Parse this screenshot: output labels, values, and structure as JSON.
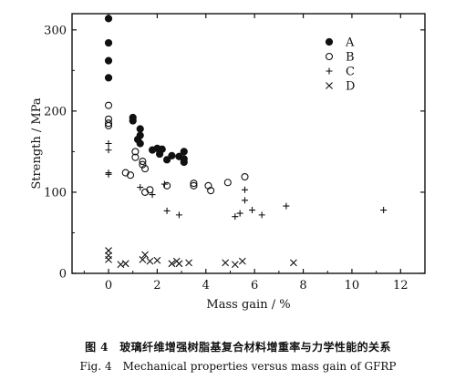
{
  "chart_data": {
    "type": "scatter",
    "xlabel": "Mass gain / %",
    "ylabel": "Strength / MPa",
    "xlim": [
      -1.5,
      13
    ],
    "ylim": [
      0,
      320
    ],
    "xticks": [
      0,
      2,
      4,
      6,
      8,
      10,
      12
    ],
    "yticks": [
      0,
      100,
      200,
      300
    ],
    "grid": false,
    "legend_position": "top-right",
    "series": [
      {
        "name": "A",
        "marker": "filled-circle",
        "points": [
          [
            0,
            314
          ],
          [
            0,
            284
          ],
          [
            0,
            262
          ],
          [
            0,
            241
          ],
          [
            1.0,
            192
          ],
          [
            1.0,
            188
          ],
          [
            1.3,
            178
          ],
          [
            1.3,
            170
          ],
          [
            1.2,
            165
          ],
          [
            1.3,
            160
          ],
          [
            1.8,
            152
          ],
          [
            2.0,
            154
          ],
          [
            2.2,
            153
          ],
          [
            2.1,
            147
          ],
          [
            2.4,
            140
          ],
          [
            2.6,
            145
          ],
          [
            2.9,
            144
          ],
          [
            3.1,
            150
          ],
          [
            3.1,
            141
          ],
          [
            3.1,
            137
          ]
        ]
      },
      {
        "name": "B",
        "marker": "open-circle",
        "points": [
          [
            0,
            207
          ],
          [
            0,
            190
          ],
          [
            0,
            185
          ],
          [
            0,
            182
          ],
          [
            0.7,
            124
          ],
          [
            0.9,
            121
          ],
          [
            1.1,
            150
          ],
          [
            1.1,
            143
          ],
          [
            1.4,
            138
          ],
          [
            1.4,
            134
          ],
          [
            1.5,
            129
          ],
          [
            1.5,
            100
          ],
          [
            1.7,
            103
          ],
          [
            2.4,
            108
          ],
          [
            3.5,
            111
          ],
          [
            3.5,
            108
          ],
          [
            4.1,
            108
          ],
          [
            4.2,
            102
          ],
          [
            4.9,
            112
          ],
          [
            5.6,
            119
          ]
        ]
      },
      {
        "name": "C",
        "marker": "plus",
        "points": [
          [
            0,
            160
          ],
          [
            0,
            152
          ],
          [
            0,
            124
          ],
          [
            0,
            122
          ],
          [
            1.3,
            106
          ],
          [
            1.8,
            97
          ],
          [
            2.3,
            110
          ],
          [
            2.4,
            77
          ],
          [
            2.9,
            72
          ],
          [
            5.2,
            70
          ],
          [
            5.4,
            74
          ],
          [
            5.6,
            90
          ],
          [
            5.6,
            103
          ],
          [
            5.9,
            78
          ],
          [
            6.3,
            72
          ],
          [
            7.3,
            83
          ],
          [
            11.3,
            78
          ]
        ]
      },
      {
        "name": "D",
        "marker": "cross",
        "points": [
          [
            0,
            28
          ],
          [
            0,
            22
          ],
          [
            0,
            17
          ],
          [
            0.5,
            11
          ],
          [
            0.7,
            12
          ],
          [
            1.4,
            17
          ],
          [
            1.5,
            23
          ],
          [
            1.7,
            15
          ],
          [
            2.0,
            16
          ],
          [
            2.6,
            12
          ],
          [
            2.8,
            15
          ],
          [
            2.9,
            12
          ],
          [
            3.3,
            13
          ],
          [
            4.8,
            13
          ],
          [
            5.2,
            11
          ],
          [
            5.5,
            15
          ],
          [
            7.6,
            13
          ]
        ]
      }
    ]
  },
  "captions": {
    "chinese": "图 4　玻璃纤维增强树脂基复合材料增重率与力学性能的关系",
    "english": "Fig. 4　Mechanical properties versus mass gain of GFRP"
  }
}
